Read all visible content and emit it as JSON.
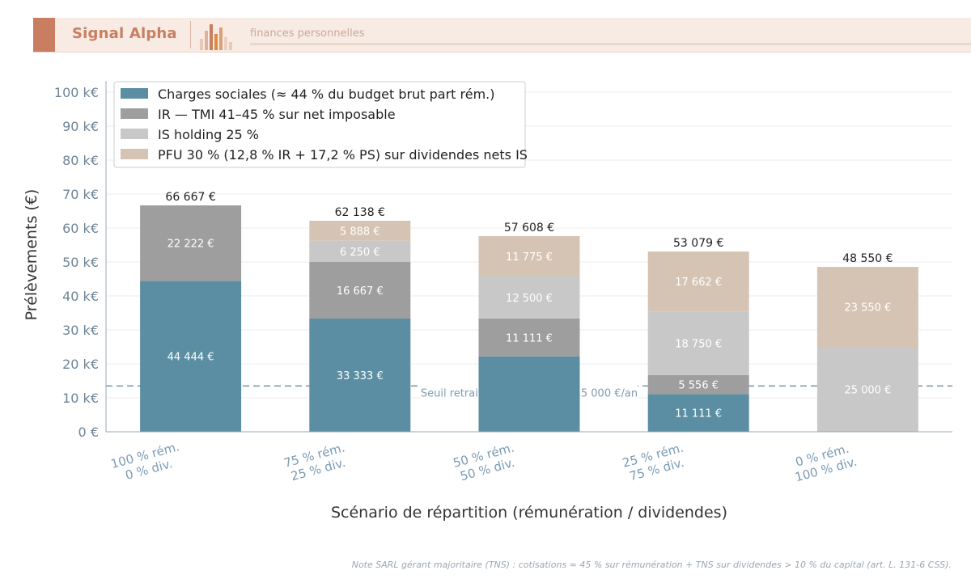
{
  "header": {
    "brand": "Signal Alpha",
    "tagline": "finances personnelles",
    "colors": {
      "accent": "#c97e62",
      "banner_bg": "#f8ebe3"
    }
  },
  "chart_data": {
    "type": "bar",
    "stacked": true,
    "categories": [
      [
        "100 % rém.",
        "0 % div."
      ],
      [
        "75 % rém.",
        "25 % div."
      ],
      [
        "50 % rém.",
        "50 % div."
      ],
      [
        "25 % rém.",
        "75 % div."
      ],
      [
        "0 % rém.",
        "100 % div."
      ]
    ],
    "series": [
      {
        "name": "Charges sociales (≈ 44 % du budget brut part rém.)",
        "color": "#5b8ea3",
        "values": [
          44444,
          33333,
          22222,
          11111,
          0
        ],
        "labels": [
          "44 444 €",
          "33 333 €",
          "",
          "11 111 €",
          ""
        ]
      },
      {
        "name": "IR — TMI 41–45 % sur net imposable",
        "color": "#9e9e9e",
        "values": [
          22222,
          16667,
          11111,
          5556,
          0
        ],
        "labels": [
          "22 222 €",
          "16 667 €",
          "11 111 €",
          "5 556 €",
          ""
        ]
      },
      {
        "name": "IS holding 25 %",
        "color": "#c8c8c8",
        "values": [
          0,
          6250,
          12500,
          18750,
          25000
        ],
        "labels": [
          "",
          "6 250 €",
          "12 500 €",
          "18 750 €",
          "25 000 €"
        ]
      },
      {
        "name": "PFU 30 % (12,8 % IR + 17,2 % PS) sur dividendes nets IS",
        "color": "#d5c4b4",
        "values": [
          0,
          5888,
          11775,
          17662,
          23550
        ],
        "labels": [
          "",
          "5 888 €",
          "11 775 €",
          "17 662 €",
          "23 550 €"
        ]
      }
    ],
    "totals": [
      "66 667 €",
      "62 138 €",
      "57 608 €",
      "53 079 €",
      "48 550 €"
    ],
    "ylim": [
      0,
      100000
    ],
    "yticks": [
      0,
      10000,
      20000,
      30000,
      40000,
      50000,
      60000,
      70000,
      80000,
      90000,
      100000
    ],
    "ytick_labels": [
      "0 €",
      "10 k€",
      "20 k€",
      "30 k€",
      "40 k€",
      "50 k€",
      "60 k€",
      "70 k€",
      "80 k€",
      "90 k€",
      "100 k€"
    ],
    "xlabel": "Scénario de répartition (rémunération / dividendes)",
    "ylabel": "Prélèvements (€)",
    "grid": true,
    "legend_position": "top-left",
    "threshold": {
      "value": 13500,
      "label": "Seuil retraite min. : 12 000 – 15 000 €/an",
      "color": "#7f9bb0"
    }
  },
  "footer": {
    "note": "Note SARL gérant majoritaire (TNS) : cotisations ≈ 45 % sur rémunération + TNS sur dividendes > 10 % du capital (art. L. 131-6 CSS)."
  }
}
